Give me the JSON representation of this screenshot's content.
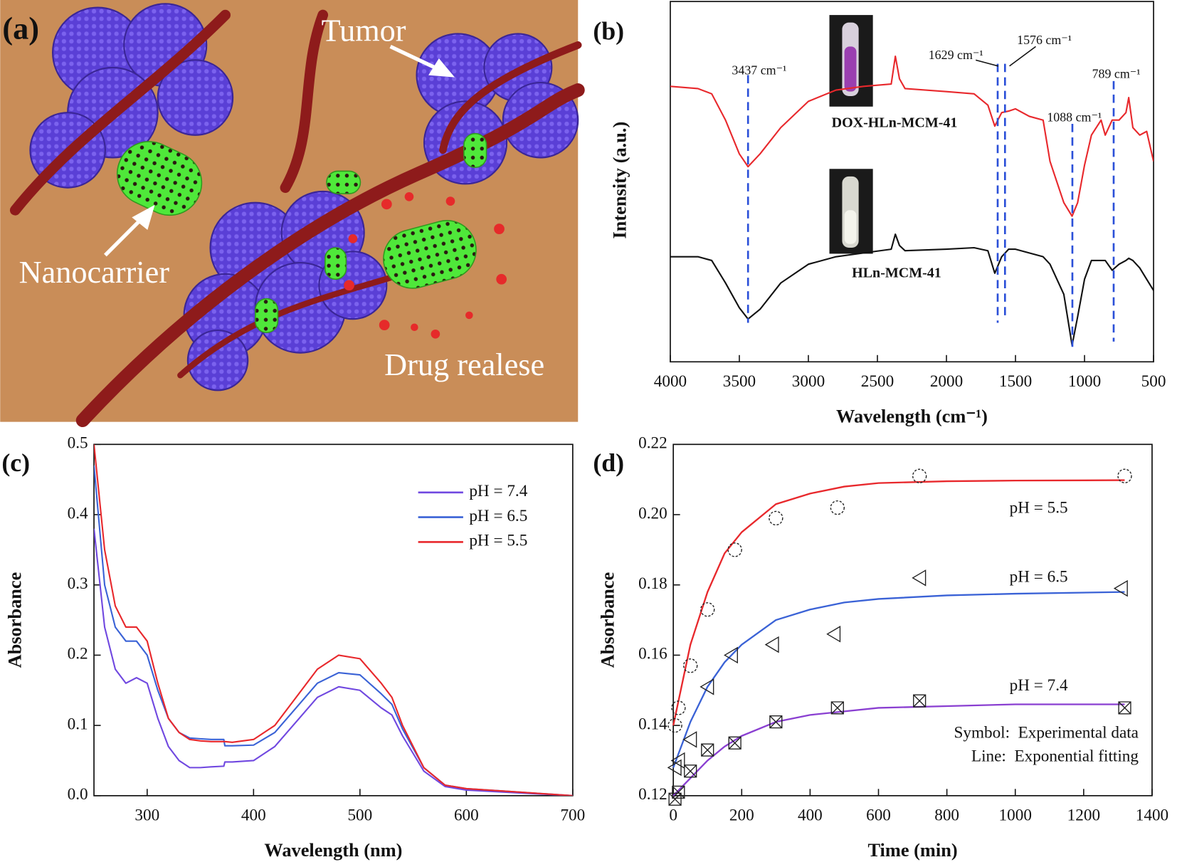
{
  "illustration": {
    "panel_label": "(a)",
    "labels": [
      "Tumor",
      "Nanocarrier",
      "Drug realese"
    ]
  },
  "chart_data": [
    {
      "type": "line",
      "panel_label": "(b)",
      "x_label": "Wavelength (cm⁻¹)",
      "y_label": "Intensity (a.u.)",
      "xlim": [
        4000,
        500
      ],
      "xticks": [
        4000,
        3500,
        3000,
        2500,
        2000,
        1500,
        1000,
        500
      ],
      "ylim": [
        0,
        480
      ],
      "x": [
        4000,
        3800,
        3700,
        3600,
        3500,
        3437,
        3350,
        3200,
        3000,
        2800,
        2600,
        2400,
        2370,
        2340,
        2300,
        2000,
        1800,
        1700,
        1650,
        1600,
        1550,
        1500,
        1400,
        1300,
        1250,
        1150,
        1090,
        1050,
        1000,
        950,
        880,
        850,
        800,
        750,
        700,
        680,
        650,
        600,
        550,
        500
      ],
      "series": [
        {
          "name": "DOX-HLn-MCM-41",
          "color": "#e8282c",
          "values": [
            367,
            364,
            357,
            322,
            277,
            260,
            277,
            312,
            347,
            362,
            367,
            370,
            407,
            377,
            364,
            360,
            357,
            342,
            314,
            332,
            334,
            337,
            327,
            322,
            267,
            212,
            194,
            212,
            262,
            302,
            322,
            302,
            322,
            322,
            332,
            352,
            312,
            302,
            307,
            267
          ]
        },
        {
          "name": "HLn-MCM-41",
          "color": "#111111",
          "values": [
            140,
            140,
            135,
            105,
            72,
            57,
            70,
            105,
            130,
            140,
            145,
            150,
            170,
            155,
            148,
            150,
            152,
            148,
            118,
            140,
            150,
            150,
            145,
            140,
            130,
            90,
            22,
            60,
            110,
            135,
            135,
            135,
            122,
            130,
            135,
            138,
            135,
            125,
            110,
            95
          ]
        }
      ],
      "annotations": [
        {
          "text": "3437 cm⁻¹",
          "x": 3437
        },
        {
          "text": "1629 cm⁻¹",
          "x": 1629
        },
        {
          "text": "1576 cm⁻¹",
          "x": 1576
        },
        {
          "text": "1088 cm⁻¹",
          "x": 1088
        },
        {
          "text": "789 cm⁻¹",
          "x": 789
        }
      ],
      "annotation_color": "#2a4fd8"
    },
    {
      "type": "line",
      "panel_label": "(c)",
      "x_label": "Wavelength (nm)",
      "y_label": "Absorbance",
      "xlim": [
        250,
        700
      ],
      "xticks": [
        300,
        400,
        500,
        600,
        700
      ],
      "ylim": [
        0,
        0.5
      ],
      "yticks": [
        {
          "value": 0,
          "label": "0.0"
        },
        0.1,
        0.2,
        0.3,
        0.4,
        0.5
      ],
      "legend": "top-right",
      "x": [
        250,
        260,
        270,
        280,
        290,
        300,
        310,
        320,
        330,
        340,
        350,
        360,
        372,
        373,
        380,
        400,
        420,
        440,
        460,
        480,
        500,
        520,
        530,
        540,
        560,
        580,
        600,
        650,
        700
      ],
      "series": [
        {
          "name": "pH = 7.4",
          "color": "#7048e0",
          "values": [
            0.38,
            0.24,
            0.18,
            0.16,
            0.168,
            0.16,
            0.11,
            0.07,
            0.05,
            0.04,
            0.04,
            0.041,
            0.042,
            0.048,
            0.048,
            0.05,
            0.07,
            0.105,
            0.14,
            0.155,
            0.15,
            0.125,
            0.115,
            0.085,
            0.035,
            0.013,
            0.008,
            0.004,
            0
          ]
        },
        {
          "name": "pH = 6.5",
          "color": "#3a62d6",
          "values": [
            0.47,
            0.3,
            0.24,
            0.22,
            0.22,
            0.2,
            0.15,
            0.11,
            0.09,
            0.082,
            0.081,
            0.08,
            0.08,
            0.071,
            0.071,
            0.072,
            0.09,
            0.125,
            0.16,
            0.175,
            0.172,
            0.145,
            0.13,
            0.095,
            0.04,
            0.015,
            0.01,
            0.005,
            0
          ]
        },
        {
          "name": "pH = 5.5",
          "color": "#e8282c",
          "values": [
            0.5,
            0.35,
            0.27,
            0.24,
            0.24,
            0.22,
            0.16,
            0.11,
            0.09,
            0.08,
            0.078,
            0.077,
            0.077,
            0.077,
            0.076,
            0.08,
            0.1,
            0.14,
            0.18,
            0.2,
            0.195,
            0.16,
            0.14,
            0.1,
            0.04,
            0.015,
            0.01,
            0.005,
            0
          ]
        }
      ]
    },
    {
      "type": "scatter",
      "panel_label": "(d)",
      "x_label": "Time (min)",
      "y_label": "Absorbance",
      "xlim": [
        0,
        1400
      ],
      "xticks": [
        0,
        200,
        400,
        600,
        800,
        1000,
        1200,
        1400
      ],
      "ylim": [
        0.12,
        0.22
      ],
      "yticks": [
        0.12,
        0.14,
        0.16,
        0.18,
        {
          "value": 0.2,
          "label": "0.20"
        },
        0.22
      ],
      "marker_color": "#222222",
      "fit_x": [
        0,
        50,
        100,
        150,
        200,
        300,
        400,
        500,
        600,
        800,
        1000,
        1320
      ],
      "series": [
        {
          "name": "pH = 5.5",
          "color": "#e8282c",
          "marker": "circle",
          "x": [
            5,
            15,
            50,
            100,
            180,
            300,
            480,
            720,
            1320
          ],
          "values": [
            0.14,
            0.145,
            0.157,
            0.173,
            0.19,
            0.199,
            0.202,
            0.211,
            0.211
          ],
          "fit_values": [
            0.14,
            0.163,
            0.178,
            0.189,
            0.195,
            0.203,
            0.206,
            0.208,
            0.209,
            0.2095,
            0.2097,
            0.2098
          ]
        },
        {
          "name": "pH = 6.5",
          "color": "#3a62d6",
          "marker": "triangle-left",
          "x": [
            5,
            15,
            50,
            100,
            170,
            290,
            470,
            720,
            1310
          ],
          "values": [
            0.128,
            0.13,
            0.136,
            0.151,
            0.16,
            0.163,
            0.166,
            0.182,
            0.179
          ],
          "fit_values": [
            0.128,
            0.141,
            0.151,
            0.158,
            0.163,
            0.17,
            0.173,
            0.175,
            0.176,
            0.177,
            0.1775,
            0.178
          ]
        },
        {
          "name": "pH = 7.4",
          "color": "#8a3fd1",
          "marker": "boxed-x",
          "x": [
            5,
            15,
            50,
            100,
            180,
            300,
            480,
            720,
            1320
          ],
          "values": [
            0.119,
            0.121,
            0.127,
            0.133,
            0.135,
            0.141,
            0.145,
            0.147,
            0.145
          ],
          "fit_values": [
            0.12,
            0.125,
            0.13,
            0.134,
            0.137,
            0.141,
            0.143,
            0.144,
            0.145,
            0.1455,
            0.146,
            0.146
          ]
        }
      ],
      "annotations": [
        "Symbol:  Experimental data",
        "Line:  Exponential fitting"
      ]
    }
  ]
}
